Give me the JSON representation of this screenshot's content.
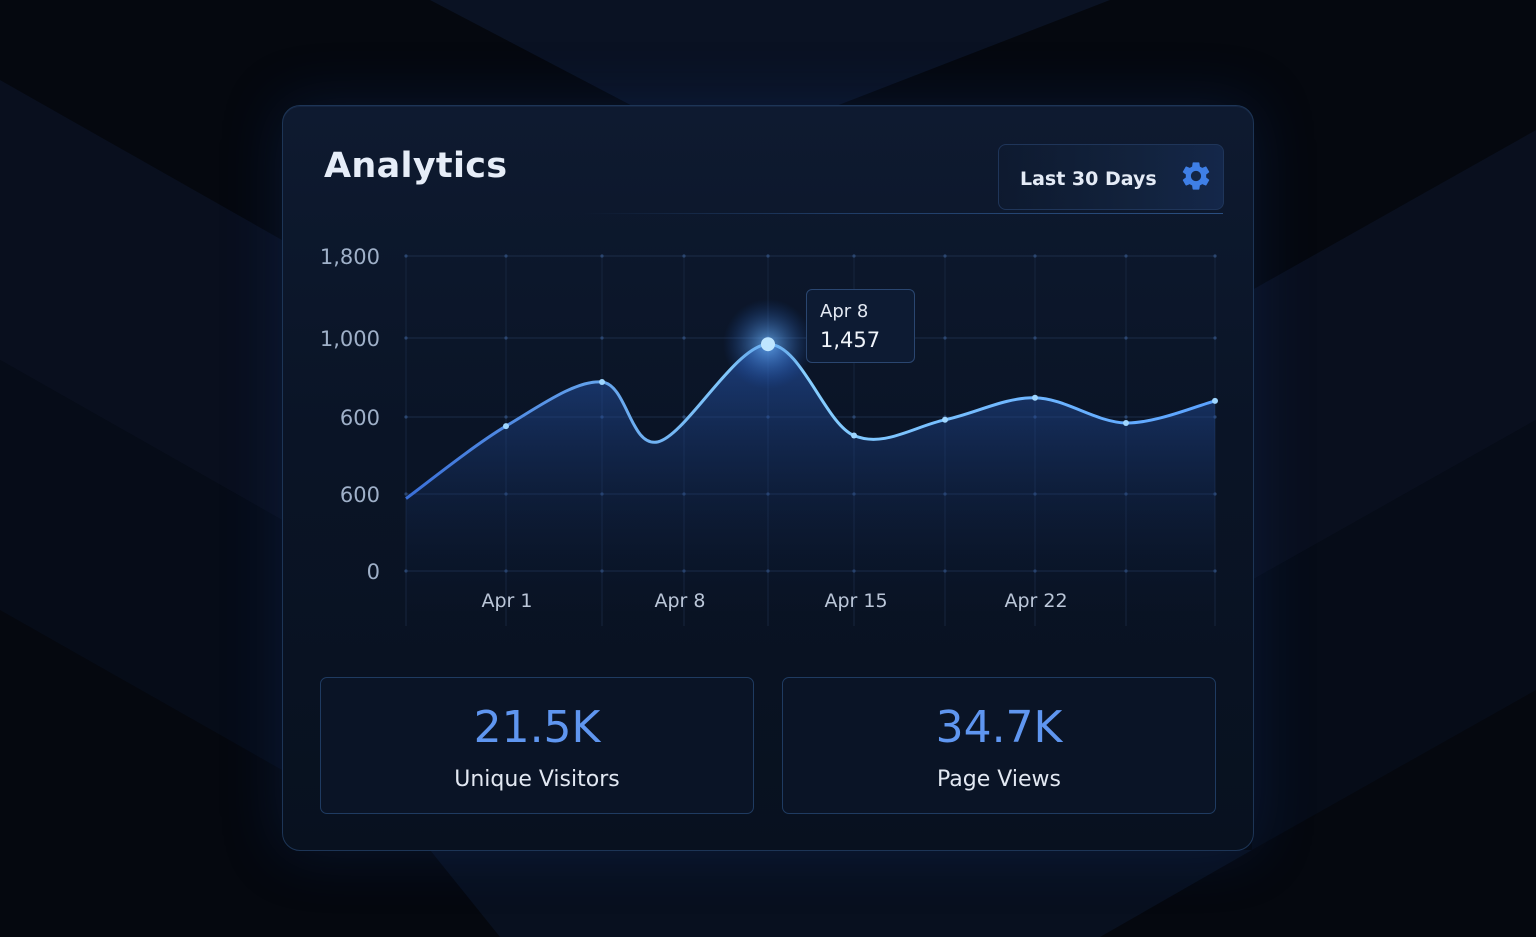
{
  "header": {
    "title": "Analytics",
    "range_label": "Last 30 Days"
  },
  "icons": {
    "settings": "gear-icon"
  },
  "colors": {
    "background": "#05080f",
    "card": "#0a1426",
    "accent": "#5f96f0",
    "line": "#7cc3ff"
  },
  "tooltip": {
    "date": "Apr 8",
    "value": "1,457"
  },
  "chart_data": {
    "type": "area",
    "ytick_labels": [
      "1,800",
      "1,000",
      "600",
      "600",
      "0"
    ],
    "xtick_labels": [
      "Apr 1",
      "Apr 8",
      "Apr 15",
      "Apr 22"
    ],
    "grid": true,
    "series_points": [
      {
        "label": "Apr 1",
        "level": 0.23
      },
      {
        "label": "",
        "level": 0.46
      },
      {
        "label": "",
        "level": 0.6
      },
      {
        "label": "",
        "level": 0.41
      },
      {
        "label": "Apr 8",
        "level": 0.72
      },
      {
        "label": "",
        "level": 0.43
      },
      {
        "label": "",
        "level": 0.48
      },
      {
        "label": "",
        "level": 0.55
      },
      {
        "label": "",
        "level": 0.47
      },
      {
        "label": "",
        "level": 0.54
      }
    ],
    "highlight": {
      "label": "Apr 8",
      "value": "1,457"
    }
  },
  "stats": [
    {
      "value": "21.5K",
      "label": "Unique Visitors"
    },
    {
      "value": "34.7K",
      "label": "Page Views"
    }
  ]
}
